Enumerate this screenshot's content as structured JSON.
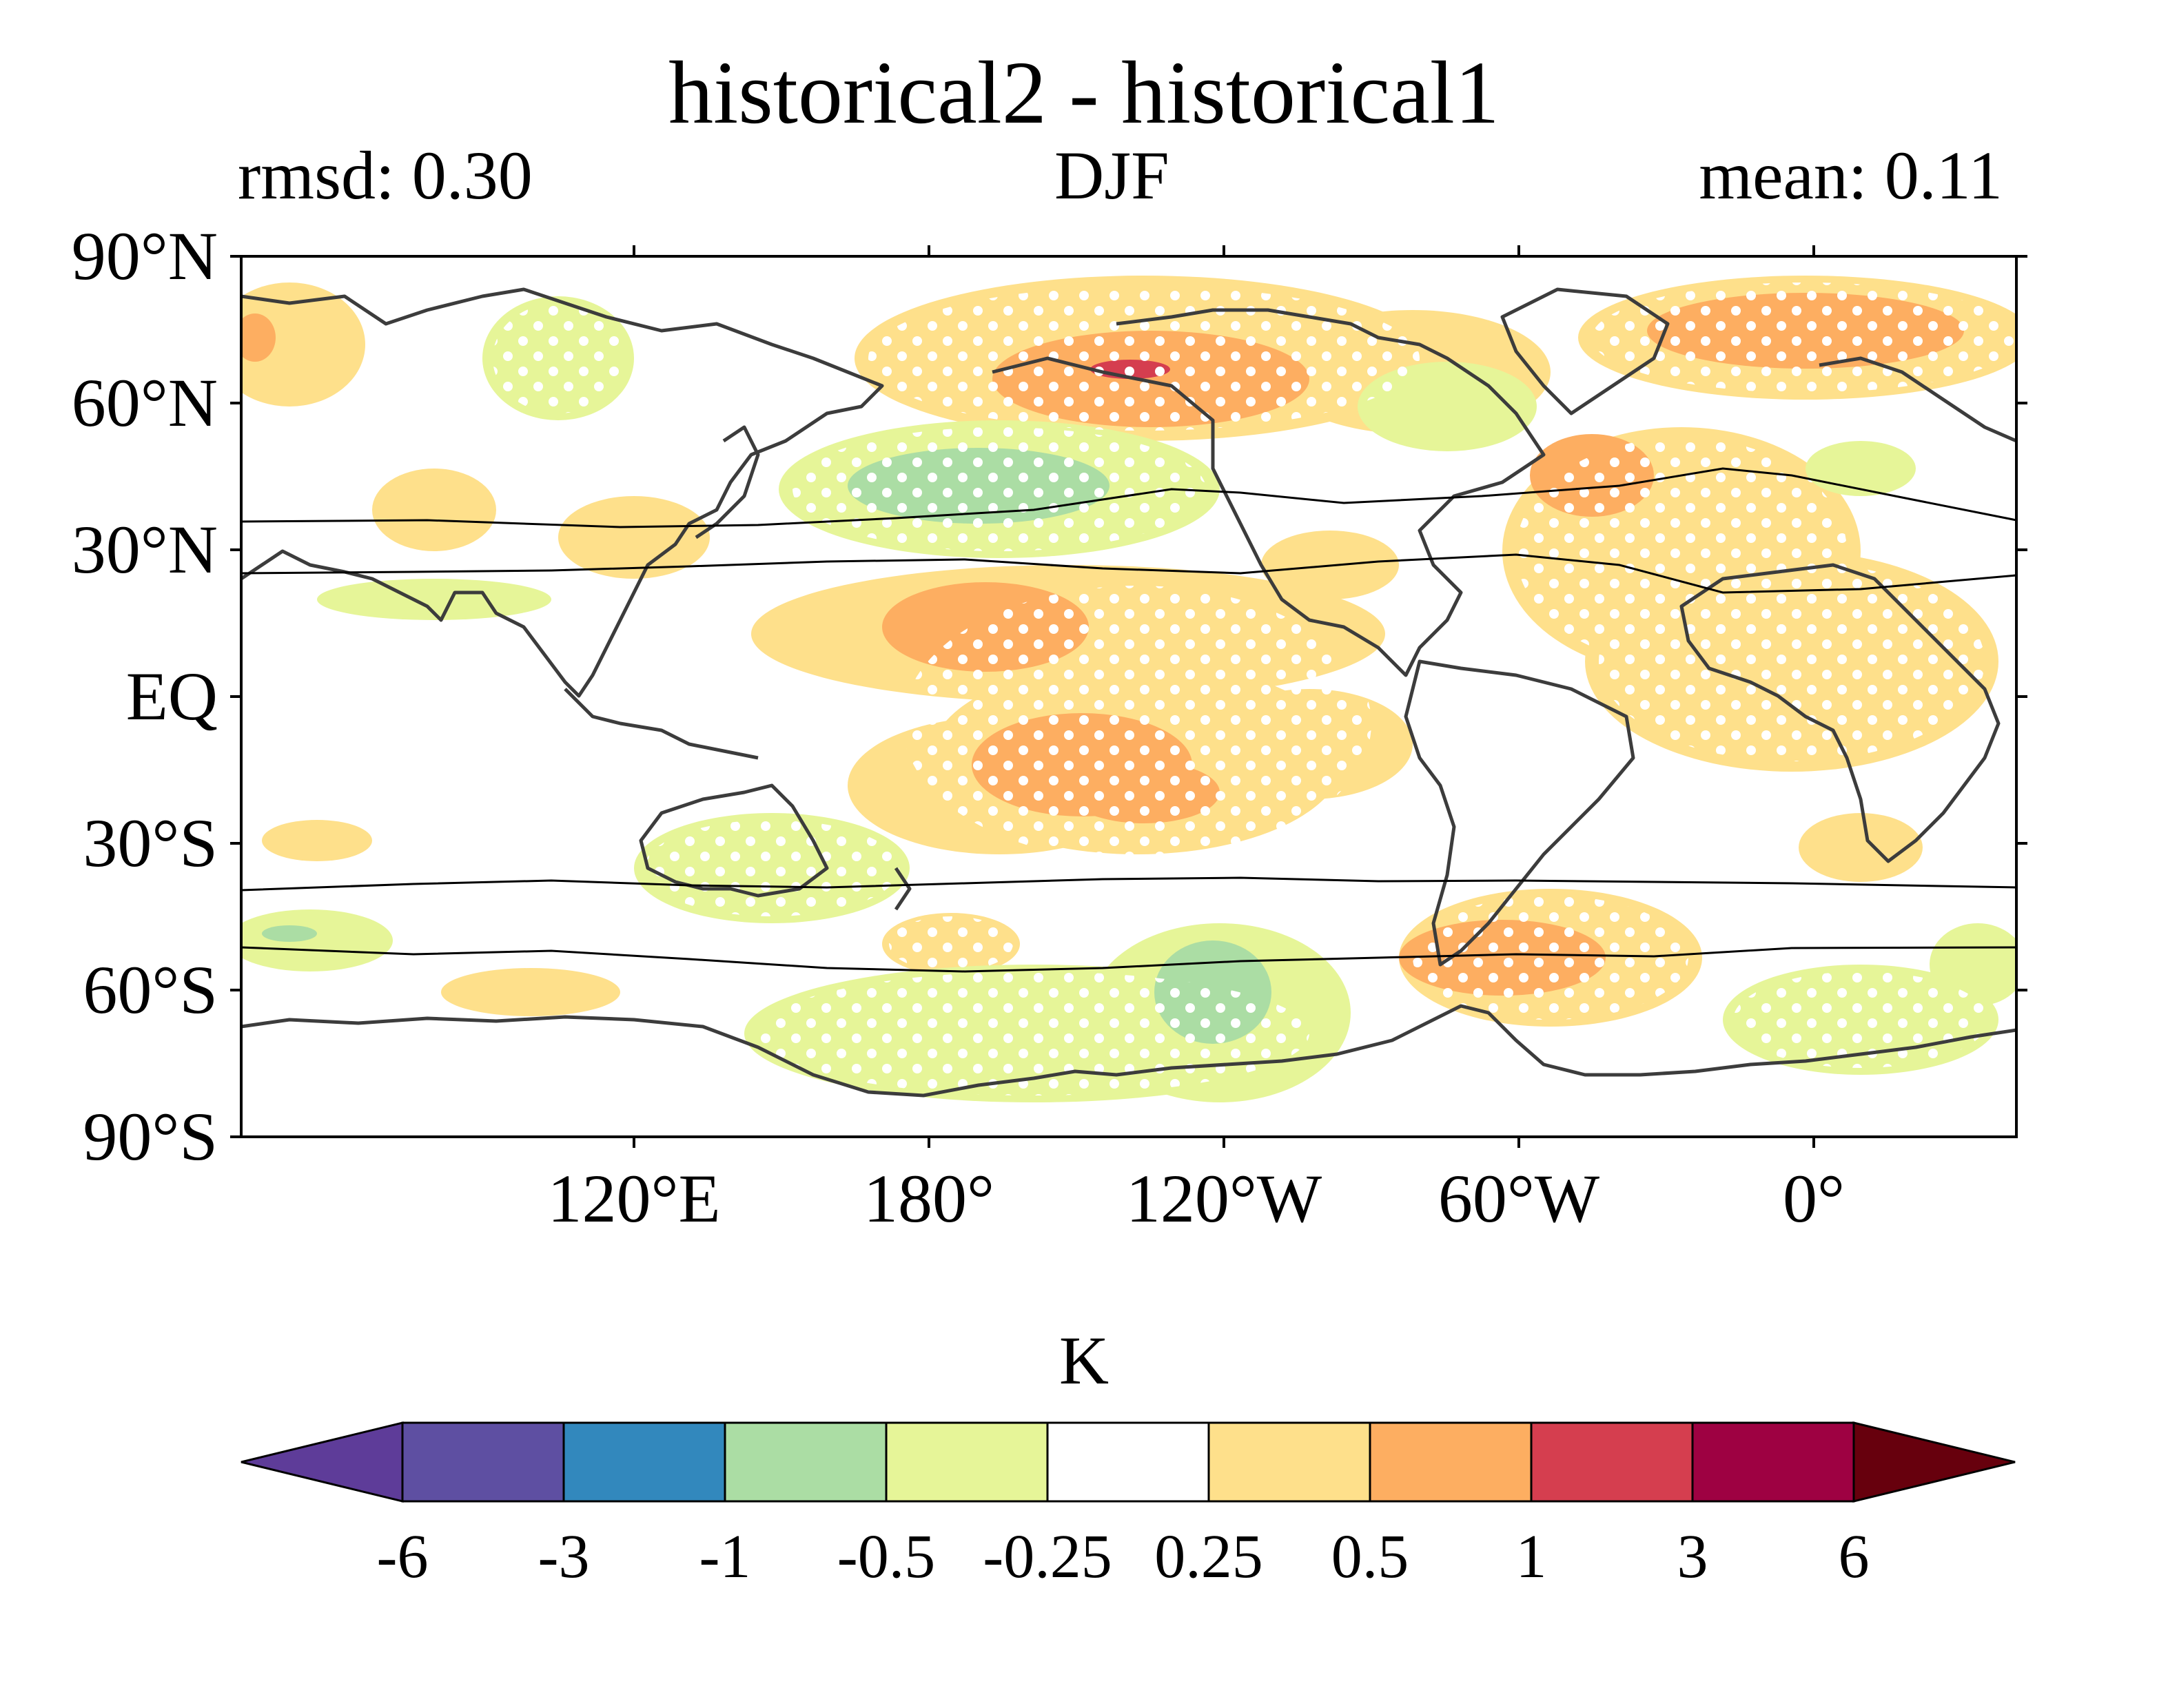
{
  "header": {
    "title": "historical2 - historical1",
    "left": "rmsd: 0.30",
    "center": "DJF",
    "right": "mean: 0.11"
  },
  "axes": {
    "lat_ticks": [
      "90°N",
      "60°N",
      "30°N",
      "EQ",
      "30°S",
      "60°S",
      "90°S"
    ],
    "lon_ticks": [
      "120°E",
      "180°",
      "120°W",
      "60°W",
      "0°"
    ]
  },
  "colorbar": {
    "unit": "K",
    "levels": [
      "-6",
      "-3",
      "-1",
      "-0.5",
      "-0.25",
      "0.25",
      "0.5",
      "1",
      "3",
      "6"
    ],
    "colors": [
      "#5e3c99",
      "#5e4fa2",
      "#3288bd",
      "#abdda4",
      "#e6f598",
      "#ffffff",
      "#fee08b",
      "#fdae61",
      "#d53e4f",
      "#9e0142",
      "#67000d"
    ]
  }
}
